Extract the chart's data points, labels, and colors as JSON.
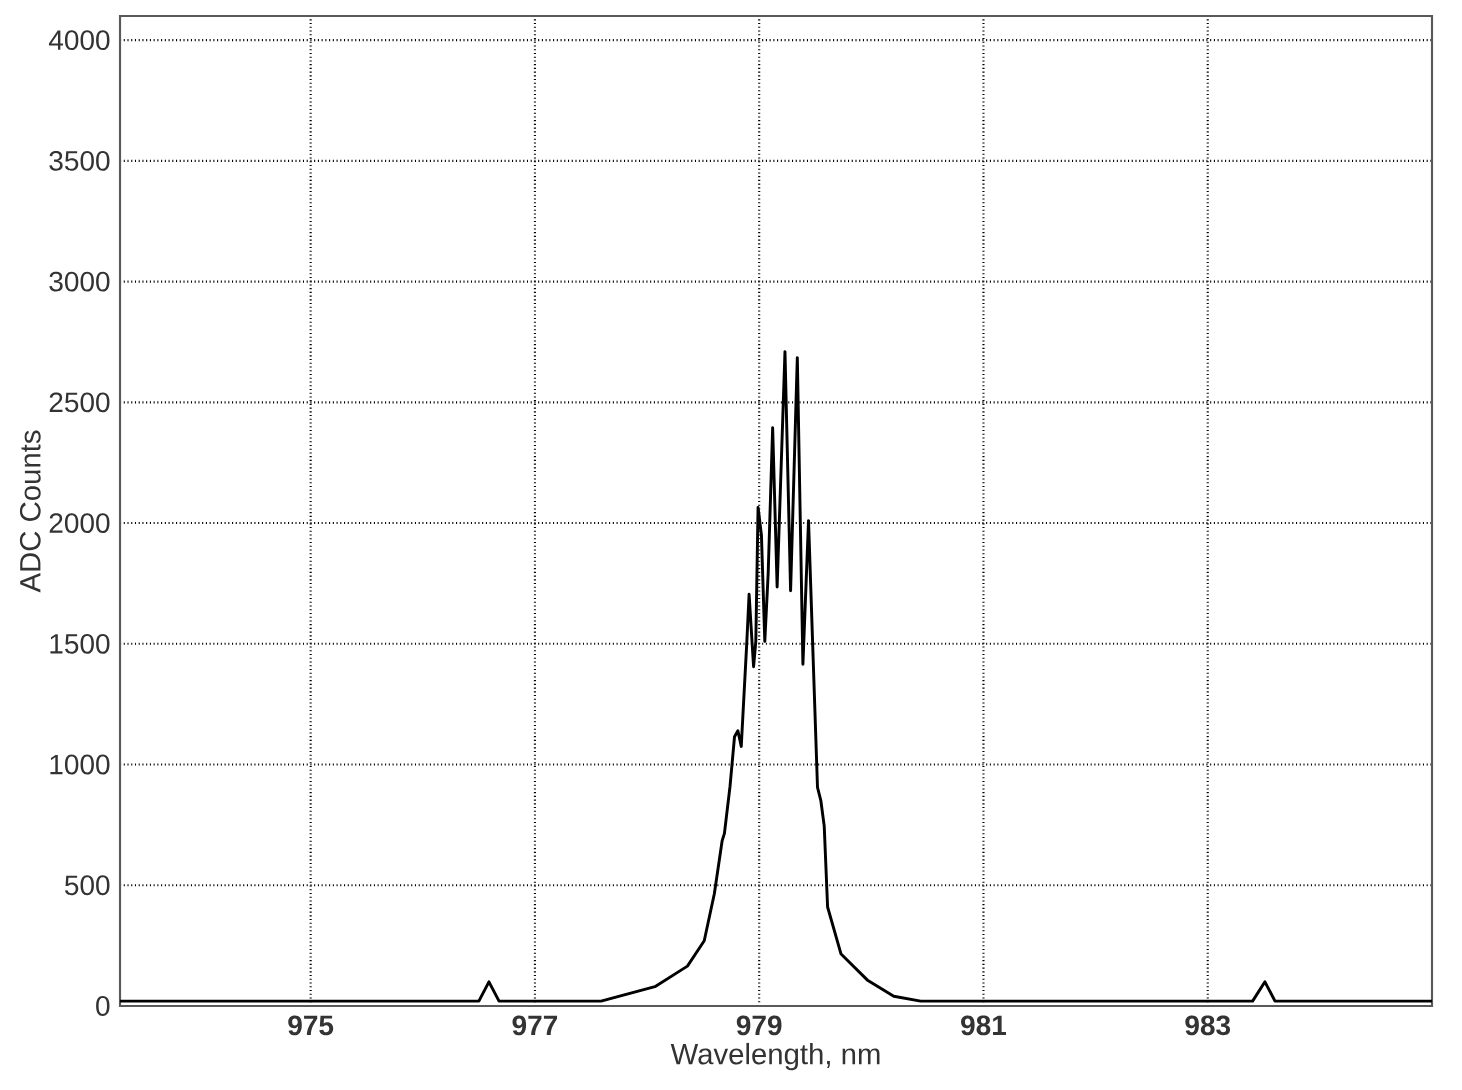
{
  "chart_data": {
    "type": "line",
    "xlabel": "Wavelength, nm",
    "ylabel": "ADC Counts",
    "xlim": [
      973.3,
      985
    ],
    "ylim": [
      0,
      4100
    ],
    "xticks": [
      975,
      977,
      979,
      981,
      983
    ],
    "yticks": [
      0,
      500,
      1000,
      1500,
      2000,
      2500,
      3000,
      3500,
      4000
    ],
    "grid": true,
    "marker": "none",
    "line_style": "solid",
    "x": [
      973.3,
      973.6,
      973.9,
      974.2,
      974.5,
      974.8,
      975.1,
      975.4,
      975.7,
      976.0,
      976.3,
      976.5,
      976.59,
      976.68,
      976.9,
      977.2,
      977.4,
      977.59,
      978.07,
      978.36,
      978.51,
      978.6,
      978.67,
      978.69,
      978.74,
      978.78,
      978.81,
      978.84,
      978.89,
      978.91,
      978.95,
      978.97,
      978.99,
      979.02,
      979.05,
      979.08,
      979.12,
      979.16,
      979.23,
      979.28,
      979.34,
      979.39,
      979.44,
      979.48,
      979.52,
      979.55,
      979.58,
      979.61,
      979.73,
      979.97,
      980.2,
      980.44,
      980.7,
      981.0,
      981.3,
      981.6,
      981.9,
      982.2,
      982.5,
      982.8,
      983.1,
      983.4,
      983.51,
      983.6,
      983.9,
      984.2,
      984.5,
      984.8,
      985.0
    ],
    "series": [
      {
        "color": "#000000",
        "values": [
          20,
          20,
          20,
          20,
          20,
          20,
          20,
          20,
          20,
          20,
          20,
          20,
          100,
          20,
          20,
          20,
          20,
          20,
          80,
          165,
          270,
          465,
          685,
          715,
          910,
          1115,
          1140,
          1075,
          1510,
          1705,
          1405,
          1510,
          2065,
          1950,
          1510,
          1790,
          2395,
          1735,
          2710,
          1720,
          2685,
          1415,
          2010,
          1455,
          905,
          850,
          745,
          410,
          215,
          105,
          40,
          20,
          20,
          20,
          20,
          20,
          20,
          20,
          20,
          20,
          20,
          20,
          100,
          20,
          20,
          20,
          20,
          20,
          20
        ]
      }
    ]
  }
}
